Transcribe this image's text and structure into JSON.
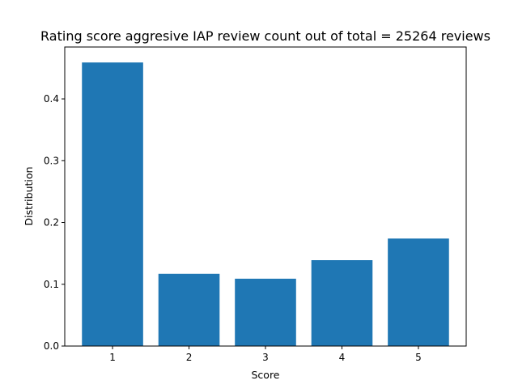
{
  "chart_data": {
    "type": "bar",
    "title": "Rating score aggresive IAP review count out of total = 25264 reviews",
    "xlabel": "Score",
    "ylabel": "Distribution",
    "categories": [
      "1",
      "2",
      "3",
      "4",
      "5"
    ],
    "values": [
      0.459,
      0.117,
      0.109,
      0.139,
      0.174
    ],
    "ylim": [
      0,
      0.484
    ],
    "yticks": [
      "0.0",
      "0.1",
      "0.2",
      "0.3",
      "0.4"
    ],
    "bar_color": "#1f77b4",
    "grid": false
  }
}
